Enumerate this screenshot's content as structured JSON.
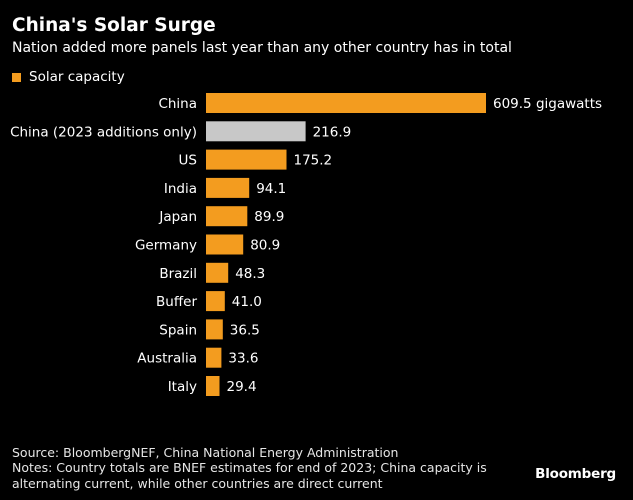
{
  "title": "China's Solar Surge",
  "subtitle": "Nation added more panels last year than any other country has in total",
  "legend": {
    "label": "Solar capacity",
    "color": "#f39c1f"
  },
  "chart_data": {
    "type": "bar",
    "orientation": "horizontal",
    "title": "China's Solar Surge",
    "subtitle": "Nation added more panels last year than any other country has in total",
    "series": [
      {
        "name": "Solar capacity",
        "unit": "gigawatts",
        "color": "#f39c1f"
      }
    ],
    "categories": [
      "China",
      "China (2023 additions only)",
      "US",
      "India",
      "Japan",
      "Germany",
      "Brazil",
      "Buffer",
      "Spain",
      "Australia",
      "Italy"
    ],
    "values": [
      609.5,
      216.9,
      175.2,
      94.1,
      89.9,
      80.9,
      48.3,
      41.0,
      36.5,
      33.6,
      29.4
    ],
    "value_labels": [
      "609.5 gigawatts",
      "216.9",
      "175.2",
      "94.1",
      "89.9",
      "80.9",
      "48.3",
      "41.0",
      "36.5",
      "33.6",
      "29.4"
    ],
    "bar_colors": [
      "#f39c1f",
      "#c8c8c8",
      "#f39c1f",
      "#f39c1f",
      "#f39c1f",
      "#f39c1f",
      "#f39c1f",
      "#f39c1f",
      "#f39c1f",
      "#f39c1f",
      "#f39c1f"
    ],
    "legend_position": "top-left",
    "grid": false
  },
  "source": "Source: BloombergNEF, China National Energy Administration",
  "notes_line1": "Notes: Country totals are BNEF estimates for end of 2023; China capacity is",
  "notes_line2": "alternating current, while other countries are direct current",
  "logo": "Bloomberg"
}
